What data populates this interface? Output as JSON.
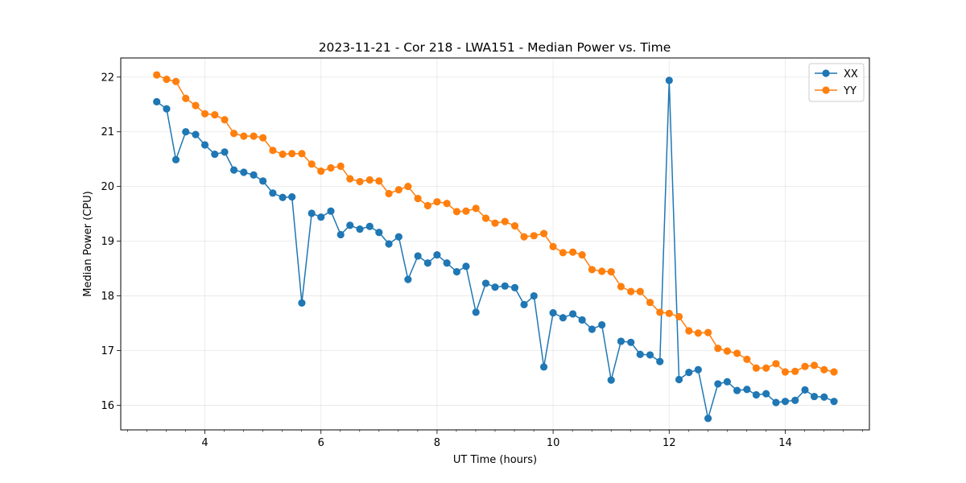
{
  "chart_data": {
    "type": "line",
    "title": "2023-11-21 - Cor 218 - LWA151 - Median Power vs. Time",
    "xlabel": "UT Time (hours)",
    "ylabel": "Median Power (CPU)",
    "xlim": [
      2.55,
      15.45
    ],
    "ylim": [
      15.55,
      22.35
    ],
    "x_ticks": [
      4,
      6,
      8,
      10,
      12,
      14
    ],
    "x_tick_labels": [
      "4",
      "6",
      "8",
      "10",
      "12",
      "14"
    ],
    "x_minor_ticks": [
      2.667,
      3.0,
      3.333,
      3.667,
      4.333,
      4.667,
      5.0,
      5.333,
      5.667,
      6.333,
      6.667,
      7.0,
      7.333,
      7.667,
      8.333,
      8.667,
      9.0,
      9.333,
      9.667,
      10.333,
      10.667,
      11.0,
      11.333,
      11.667,
      12.333,
      12.667,
      13.0,
      13.333,
      13.667,
      14.333,
      14.667,
      15.0,
      15.333
    ],
    "y_ticks": [
      16,
      17,
      18,
      19,
      20,
      21,
      22
    ],
    "y_tick_labels": [
      "16",
      "17",
      "18",
      "19",
      "20",
      "21",
      "22"
    ],
    "grid": true,
    "legend_position": "top-right",
    "x": [
      3.17,
      3.34,
      3.5,
      3.67,
      3.84,
      4.0,
      4.17,
      4.34,
      4.5,
      4.67,
      4.84,
      5.0,
      5.17,
      5.34,
      5.5,
      5.67,
      5.84,
      6.0,
      6.17,
      6.34,
      6.5,
      6.67,
      6.84,
      7.0,
      7.17,
      7.34,
      7.5,
      7.67,
      7.84,
      8.0,
      8.17,
      8.34,
      8.5,
      8.67,
      8.84,
      9.0,
      9.17,
      9.34,
      9.5,
      9.67,
      9.84,
      10.0,
      10.17,
      10.34,
      10.5,
      10.67,
      10.84,
      11.0,
      11.17,
      11.34,
      11.5,
      11.67,
      11.84,
      12.0,
      12.17,
      12.34,
      12.5,
      12.67,
      12.84,
      13.0,
      13.17,
      13.34,
      13.5,
      13.67,
      13.84,
      14.0,
      14.17,
      14.34,
      14.5,
      14.67,
      14.84
    ],
    "series": [
      {
        "name": "XX",
        "color": "#1f77b4",
        "values": [
          21.55,
          21.42,
          20.49,
          21.0,
          20.95,
          20.76,
          20.59,
          20.63,
          20.3,
          20.26,
          20.21,
          20.1,
          19.88,
          19.8,
          19.81,
          17.87,
          19.51,
          19.44,
          19.55,
          19.12,
          19.29,
          19.22,
          19.27,
          19.16,
          18.95,
          19.08,
          18.3,
          18.73,
          18.6,
          18.75,
          18.6,
          18.44,
          18.54,
          17.7,
          18.23,
          18.16,
          18.18,
          18.15,
          17.84,
          18.0,
          16.7,
          17.69,
          17.6,
          17.67,
          17.56,
          17.39,
          17.47,
          16.46,
          17.17,
          17.15,
          16.93,
          16.92,
          16.8,
          21.94,
          16.47,
          16.6,
          16.65,
          15.76,
          16.39,
          16.43,
          16.27,
          16.29,
          16.19,
          16.21,
          16.05,
          16.07,
          16.09,
          16.28,
          16.16,
          16.15,
          16.07
        ]
      },
      {
        "name": "YY",
        "color": "#ff7f0e",
        "values": [
          22.04,
          21.96,
          21.92,
          21.61,
          21.48,
          21.33,
          21.31,
          21.22,
          20.97,
          20.92,
          20.92,
          20.89,
          20.66,
          20.59,
          20.6,
          20.6,
          20.41,
          20.28,
          20.34,
          20.37,
          20.14,
          20.09,
          20.12,
          20.1,
          19.87,
          19.94,
          20.0,
          19.78,
          19.65,
          19.72,
          19.69,
          19.54,
          19.55,
          19.6,
          19.42,
          19.33,
          19.36,
          19.28,
          19.08,
          19.1,
          19.14,
          18.9,
          18.79,
          18.8,
          18.75,
          18.48,
          18.45,
          18.44,
          18.17,
          18.08,
          18.08,
          17.88,
          17.7,
          17.68,
          17.62,
          17.36,
          17.32,
          17.33,
          17.04,
          16.99,
          16.95,
          16.84,
          16.68,
          16.68,
          16.76,
          16.61,
          16.62,
          16.71,
          16.73,
          16.65,
          16.61
        ]
      }
    ]
  }
}
